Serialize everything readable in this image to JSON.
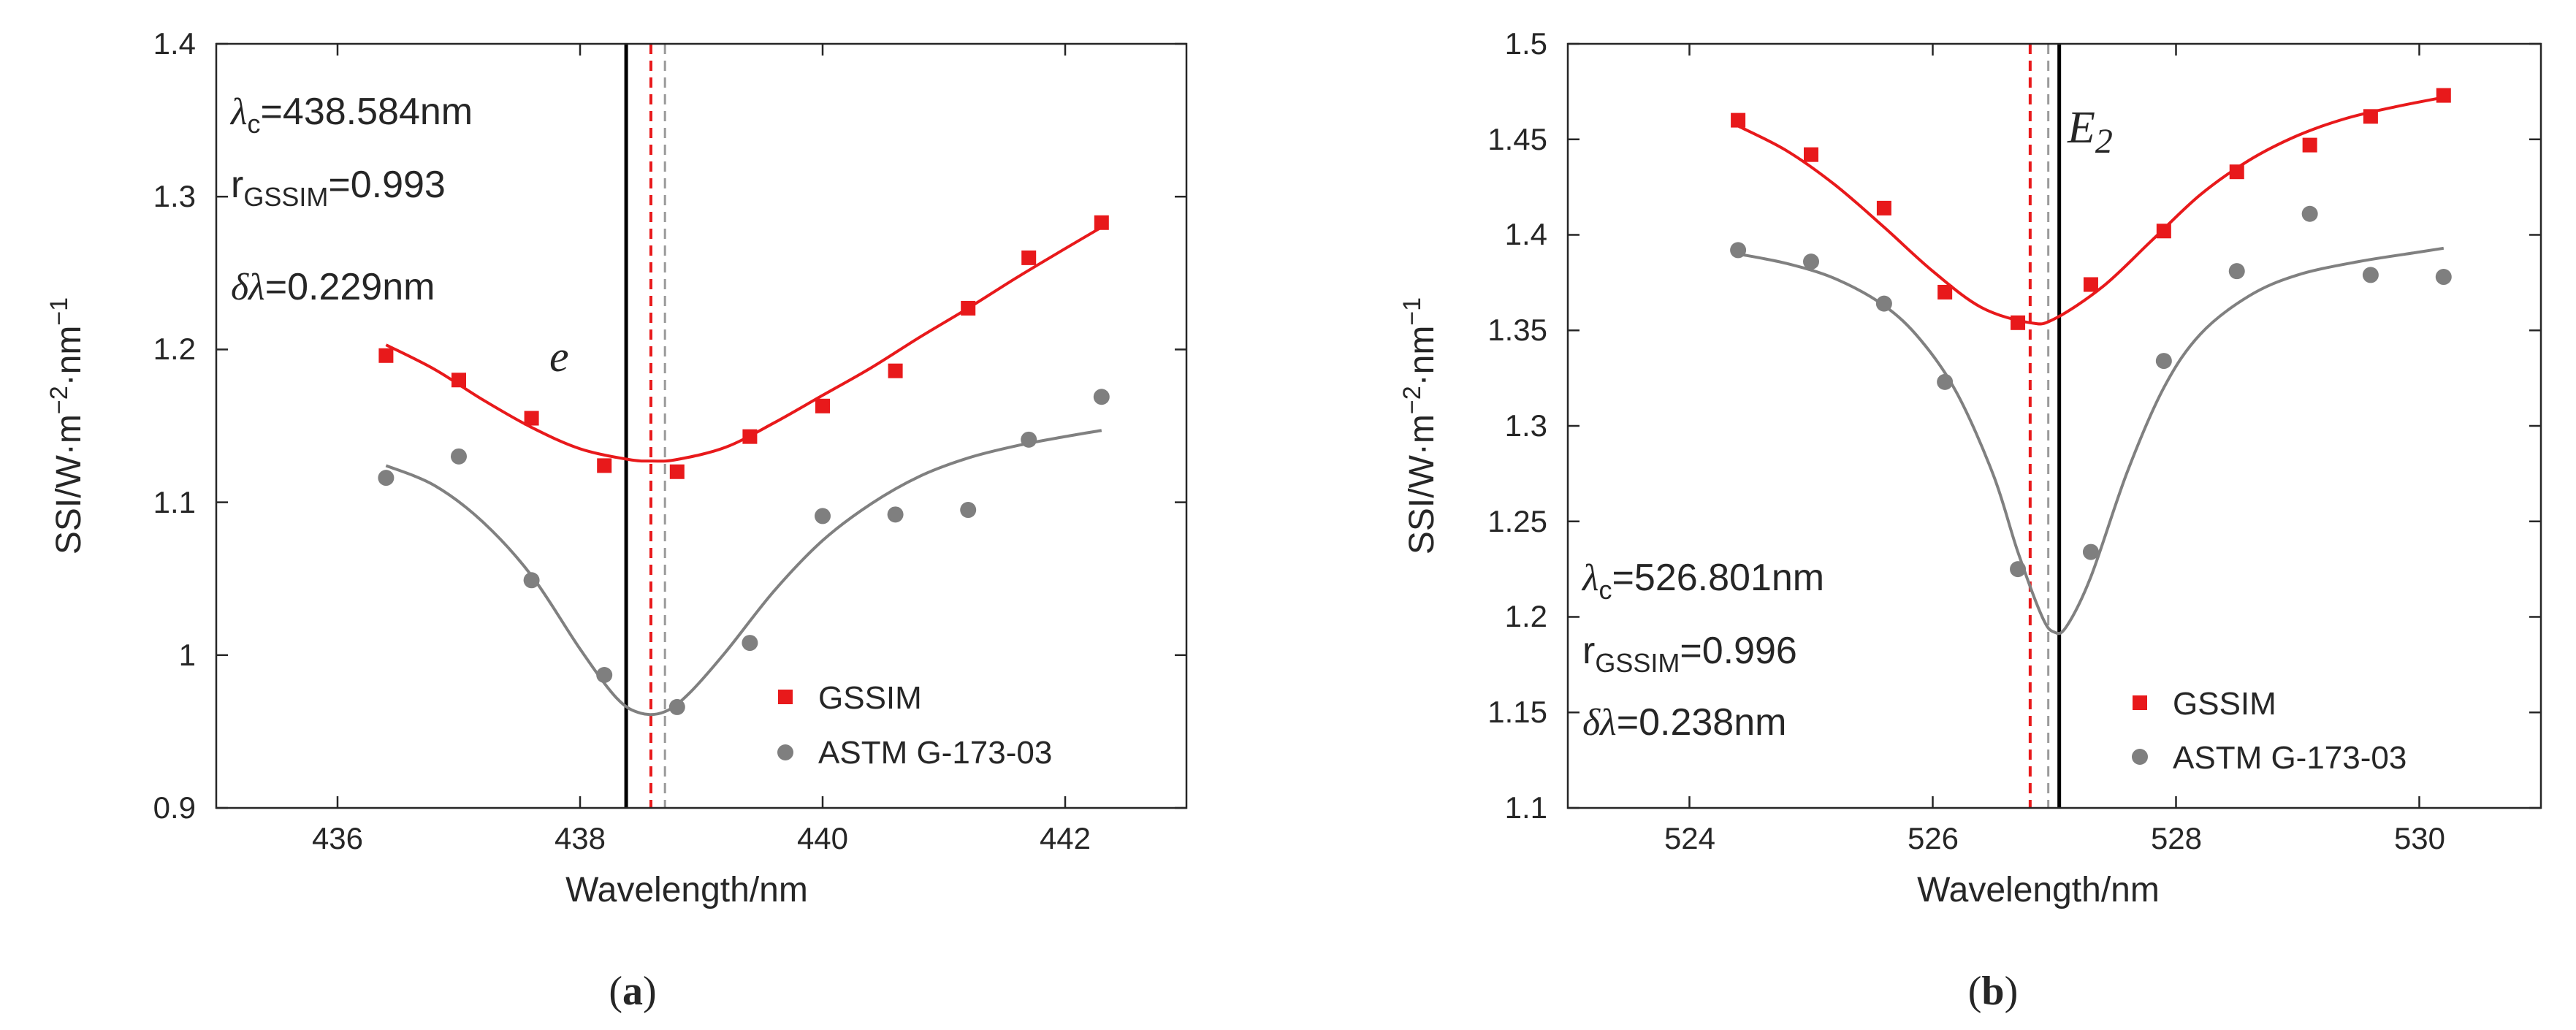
{
  "chart_data": [
    {
      "type": "scatter",
      "panel_label": [
        "(",
        "a",
        ")"
      ],
      "xlabel": "Wavelength/nm",
      "ylabel": {
        "base": "SSI/W·m",
        "exp1": "−2",
        "mid": "·nm",
        "exp2": "−1"
      },
      "xlim": [
        435,
        443
      ],
      "ylim": [
        0.9,
        1.4
      ],
      "xticks": [
        436,
        438,
        440,
        442
      ],
      "xtick_labels": [
        "436",
        "438",
        "440",
        "442"
      ],
      "yticks": [
        0.9,
        1.0,
        1.1,
        1.2,
        1.3,
        1.4
      ],
      "ytick_labels": [
        "0.9",
        "1",
        "1.1",
        "1.2",
        "1.3",
        "1.4"
      ],
      "annotations": {
        "lambda_symbol": "λ",
        "lambda_sub": "c",
        "lambda_value": "=438.584nm",
        "r_symbol": "r",
        "r_sub": "GSSIM",
        "r_value": "=0.993",
        "delta_symbol": "δλ",
        "delta_value": "=0.229nm",
        "line_label": "e",
        "line_label_sub": "",
        "position": "top-left"
      },
      "vlines": {
        "black": 438.38,
        "red_dashed": 438.584,
        "gray_dashed": 438.7
      },
      "legend": {
        "position": "bottom-right",
        "entries": [
          "GSSIM",
          "ASTM G-173-03"
        ]
      },
      "series": [
        {
          "name": "GSSIM",
          "color": "#e8191b",
          "marker": "square",
          "x": [
            436.4,
            437.0,
            437.6,
            438.2,
            438.8,
            439.4,
            440.0,
            440.6,
            441.2,
            441.7,
            442.3
          ],
          "y": [
            1.196,
            1.18,
            1.155,
            1.124,
            1.12,
            1.143,
            1.163,
            1.186,
            1.227,
            1.26,
            1.283
          ]
        },
        {
          "name": "ASTM G-173-03",
          "color": "#7f7f7f",
          "marker": "circle",
          "x": [
            436.4,
            437.0,
            437.6,
            438.2,
            438.8,
            439.4,
            440.0,
            440.6,
            441.2,
            441.7,
            442.3
          ],
          "y": [
            1.116,
            1.13,
            1.049,
            0.987,
            0.966,
            1.008,
            1.091,
            1.092,
            1.095,
            1.141,
            1.169
          ]
        }
      ],
      "fits": [
        {
          "name": "GSSIM fit",
          "color": "#e8191b",
          "x": [
            436.4,
            436.8,
            437.2,
            437.6,
            438.0,
            438.4,
            438.6,
            438.8,
            439.2,
            439.6,
            440.0,
            440.4,
            440.8,
            441.2,
            441.6,
            442.0,
            442.3
          ],
          "y": [
            1.203,
            1.187,
            1.167,
            1.149,
            1.135,
            1.128,
            1.127,
            1.128,
            1.136,
            1.152,
            1.17,
            1.188,
            1.208,
            1.227,
            1.247,
            1.266,
            1.28
          ]
        },
        {
          "name": "ASTM fit",
          "color": "#808080",
          "x": [
            436.4,
            436.8,
            437.2,
            437.6,
            438.0,
            438.3,
            438.5,
            438.7,
            438.9,
            439.2,
            439.6,
            440.0,
            440.4,
            440.8,
            441.2,
            441.6,
            442.0,
            442.3
          ],
          "y": [
            1.124,
            1.111,
            1.087,
            1.052,
            1.004,
            0.972,
            0.962,
            0.963,
            0.975,
            1.002,
            1.042,
            1.075,
            1.099,
            1.117,
            1.129,
            1.137,
            1.143,
            1.147
          ]
        }
      ]
    },
    {
      "type": "scatter",
      "panel_label": [
        "(",
        "b",
        ")"
      ],
      "xlabel": "Wavelength/nm",
      "ylabel": {
        "base": "SSI/W·m",
        "exp1": "−2",
        "mid": "·nm",
        "exp2": "−1"
      },
      "xlim": [
        523,
        531
      ],
      "ylim": [
        1.1,
        1.5
      ],
      "xticks": [
        524,
        526,
        528,
        530
      ],
      "xtick_labels": [
        "524",
        "526",
        "528",
        "530"
      ],
      "yticks": [
        1.1,
        1.15,
        1.2,
        1.25,
        1.3,
        1.35,
        1.4,
        1.45,
        1.5
      ],
      "ytick_labels": [
        "1.1",
        "1.15",
        "1.2",
        "1.25",
        "1.3",
        "1.35",
        "1.4",
        "1.45",
        "1.5"
      ],
      "annotations": {
        "lambda_symbol": "λ",
        "lambda_sub": "c",
        "lambda_value": "=526.801nm",
        "r_symbol": "r",
        "r_sub": "GSSIM",
        "r_value": "=0.996",
        "delta_symbol": "δλ",
        "delta_value": "=0.238nm",
        "line_label": "E",
        "line_label_sub": "2",
        "position": "bottom-left"
      },
      "vlines": {
        "black": 527.04,
        "red_dashed": 526.801,
        "gray_dashed": 526.95
      },
      "legend": {
        "position": "bottom-right",
        "entries": [
          "GSSIM",
          "ASTM G-173-03"
        ]
      },
      "series": [
        {
          "name": "GSSIM",
          "color": "#e8191b",
          "marker": "square",
          "x": [
            524.4,
            525.0,
            525.6,
            526.1,
            526.7,
            527.3,
            527.9,
            528.5,
            529.1,
            529.6,
            530.2
          ],
          "y": [
            1.46,
            1.442,
            1.414,
            1.37,
            1.354,
            1.374,
            1.402,
            1.433,
            1.447,
            1.462,
            1.473
          ]
        },
        {
          "name": "ASTM G-173-03",
          "color": "#7f7f7f",
          "marker": "circle",
          "x": [
            524.4,
            525.0,
            525.6,
            526.1,
            526.7,
            527.3,
            527.9,
            528.5,
            529.1,
            529.6,
            530.2
          ],
          "y": [
            1.392,
            1.386,
            1.364,
            1.323,
            1.225,
            1.234,
            1.334,
            1.381,
            1.411,
            1.379,
            1.378
          ]
        }
      ],
      "fits": [
        {
          "name": "GSSIM fit",
          "color": "#e8191b",
          "x": [
            524.4,
            524.8,
            525.2,
            525.6,
            526.0,
            526.4,
            526.8,
            527.0,
            527.4,
            527.8,
            528.2,
            528.6,
            529.0,
            529.4,
            529.8,
            530.2
          ],
          "y": [
            1.457,
            1.444,
            1.426,
            1.404,
            1.381,
            1.362,
            1.354,
            1.356,
            1.373,
            1.397,
            1.421,
            1.439,
            1.452,
            1.461,
            1.467,
            1.472
          ]
        },
        {
          "name": "ASTM fit",
          "color": "#808080",
          "x": [
            524.4,
            524.8,
            525.2,
            525.6,
            525.9,
            526.2,
            526.5,
            526.7,
            526.9,
            527.0,
            527.1,
            527.3,
            527.6,
            527.9,
            528.2,
            528.6,
            529.0,
            529.5,
            530.0,
            530.2
          ],
          "y": [
            1.39,
            1.385,
            1.377,
            1.363,
            1.345,
            1.317,
            1.274,
            1.234,
            1.2,
            1.192,
            1.195,
            1.221,
            1.276,
            1.32,
            1.348,
            1.368,
            1.379,
            1.386,
            1.391,
            1.393
          ]
        }
      ]
    }
  ]
}
